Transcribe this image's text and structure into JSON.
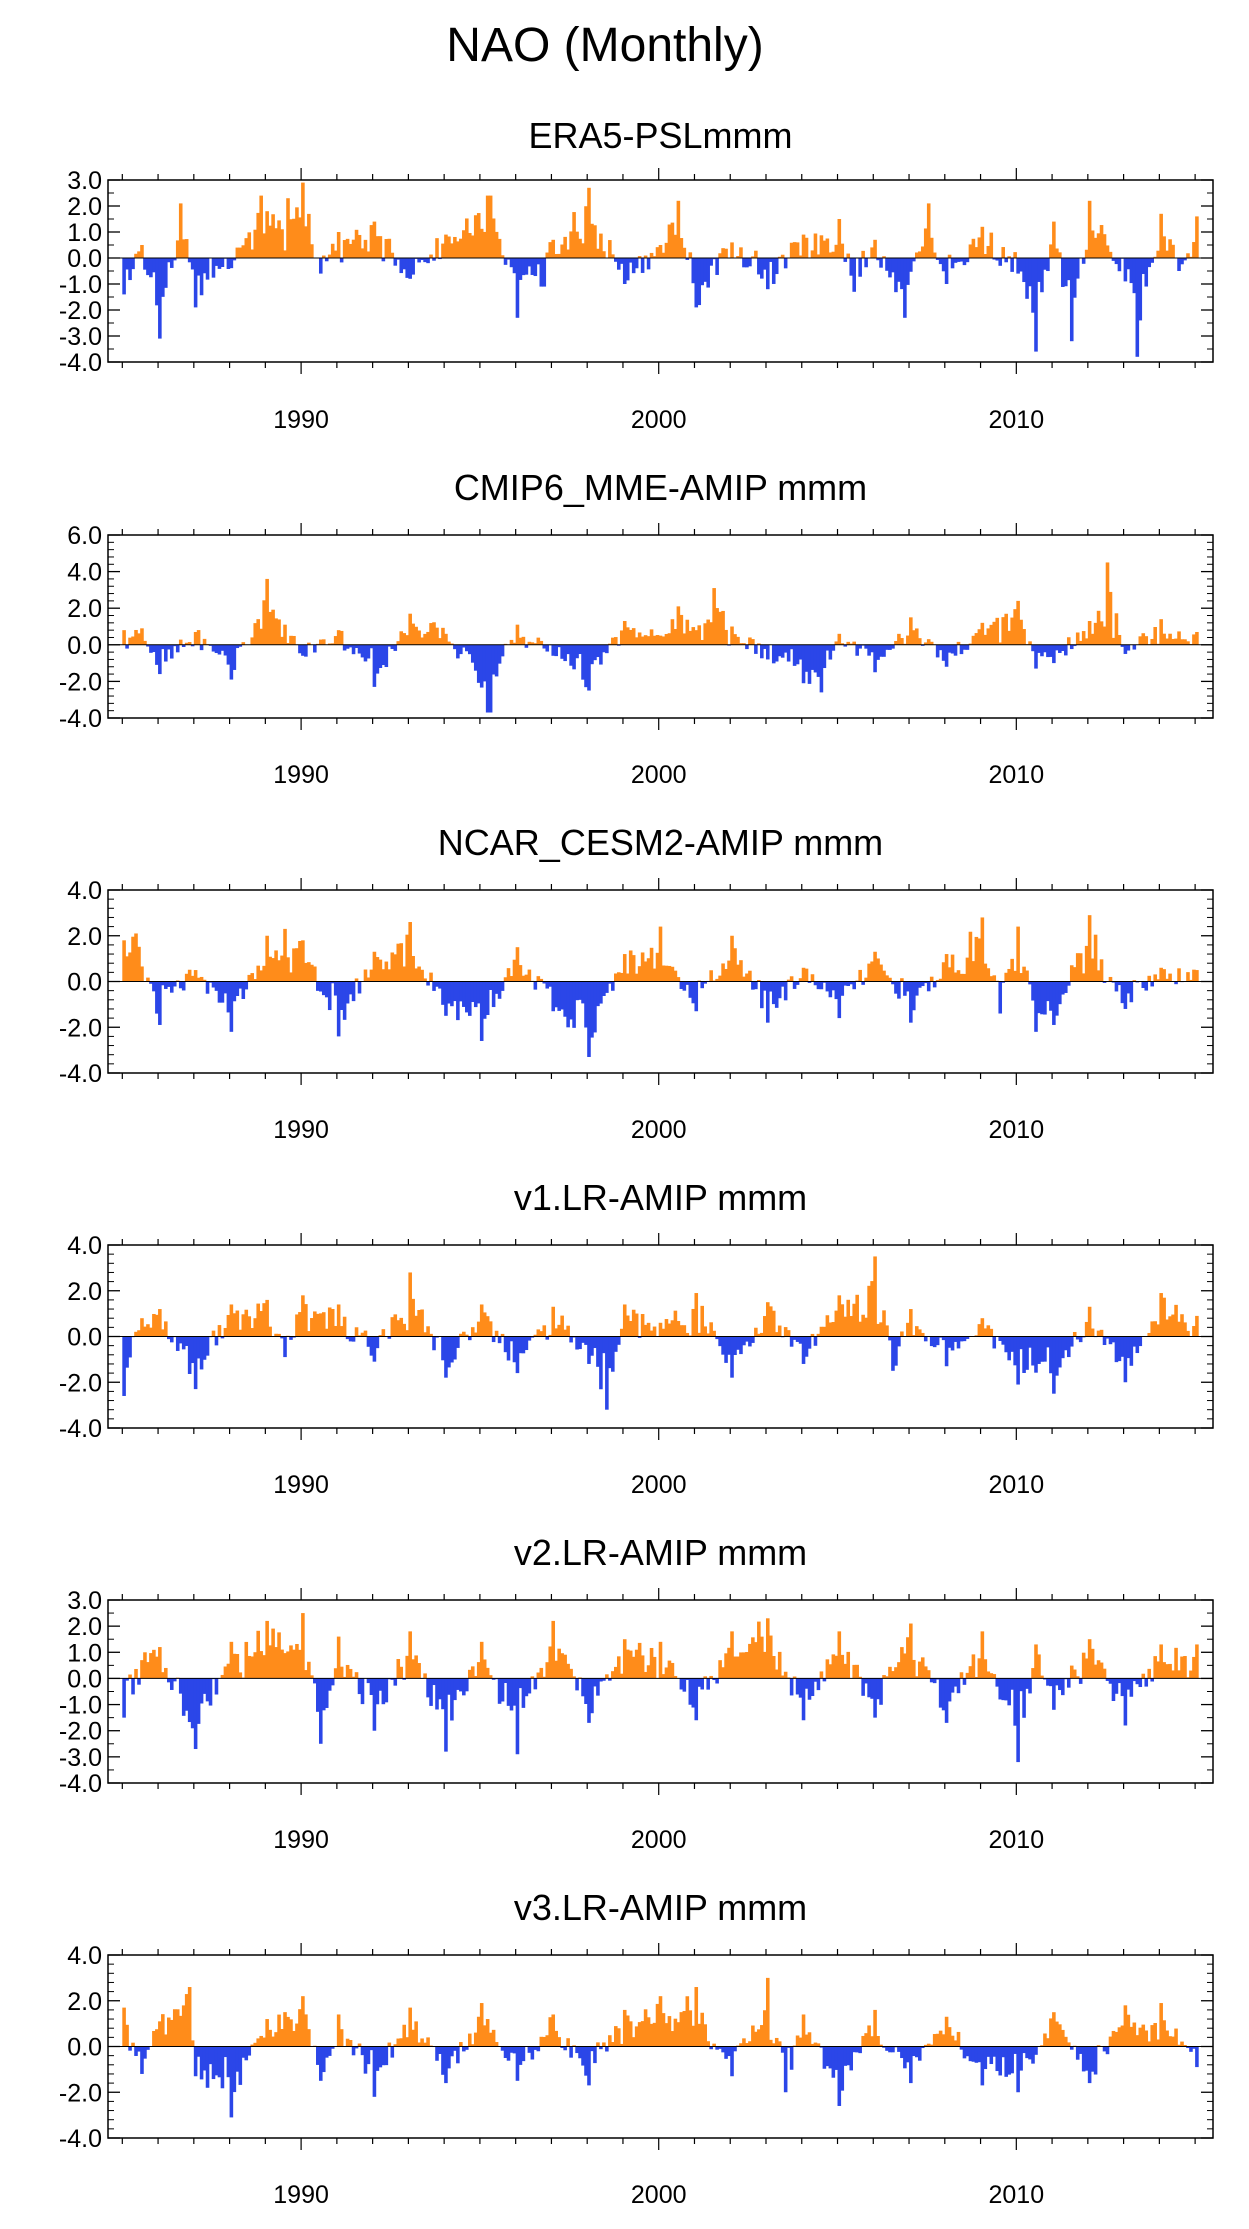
{
  "figure": {
    "title": "NAO (Monthly)"
  },
  "colors": {
    "positive": "#ff8c1a",
    "negative": "#2b46e8",
    "axis": "#000000"
  },
  "chart_data": [
    {
      "type": "area",
      "title": "ERA5-PSLmmm",
      "xlim": [
        1984.6,
        2015.5
      ],
      "ylim": [
        -4.0,
        3.0
      ],
      "xticks": [
        1990,
        2000,
        2010
      ],
      "yticks": [
        "-4.0",
        "-3.0",
        "-2.0",
        "-1.0",
        "0.0",
        "1.0",
        "2.0",
        "3.0"
      ],
      "grid": false,
      "series": [
        {
          "x": [
            1985,
            1985.5,
            1986,
            1986.6,
            1987,
            1988.2,
            1988.8,
            1989,
            1990,
            1990.5,
            1991,
            1992,
            1993,
            1994,
            1995.2,
            1996,
            1996.7,
            1997,
            1998,
            1999,
            2000,
            2000.5,
            2001,
            2002,
            2003,
            2004,
            2005,
            2005.4,
            2006,
            2006.8,
            2007.5,
            2008,
            2009,
            2010,
            2010.5,
            2011,
            2011.5,
            2012,
            2013,
            2013.3,
            2014,
            2014.5,
            2015
          ],
          "y": [
            -1.4,
            0.5,
            -3.1,
            2.1,
            -1.9,
            0.4,
            2.4,
            1.8,
            2.9,
            -0.6,
            1.0,
            1.4,
            -0.8,
            0.9,
            2.4,
            -2.3,
            -1.1,
            0.7,
            2.7,
            -1.0,
            0.5,
            2.2,
            -1.9,
            0.6,
            -1.2,
            0.9,
            1.5,
            -1.3,
            0.7,
            -2.3,
            2.1,
            -1.0,
            1.2,
            -0.6,
            -3.6,
            1.4,
            -3.2,
            2.2,
            -0.9,
            -3.8,
            1.7,
            -0.5,
            1.6
          ]
        }
      ]
    },
    {
      "type": "area",
      "title": "CMIP6_MME-AMIP  mmm",
      "xlim": [
        1984.6,
        2015.5
      ],
      "ylim": [
        -4.0,
        6.0
      ],
      "xticks": [
        1990,
        2000,
        2010
      ],
      "yticks": [
        "-4.0",
        "-2.0",
        "0.0",
        "2.0",
        "4.0",
        "6.0"
      ],
      "grid": false,
      "series": [
        {
          "x": [
            1985,
            1985.5,
            1986,
            1987,
            1988,
            1989,
            1989.5,
            1990,
            1991,
            1992,
            1993,
            1994,
            1995.2,
            1996,
            1997,
            1998,
            1999,
            2000,
            2000.5,
            2001,
            2001.5,
            2002,
            2003,
            2004,
            2004.5,
            2005,
            2006,
            2007,
            2008,
            2009,
            2010,
            2010.5,
            2011,
            2012,
            2012.5,
            2013,
            2014,
            2015
          ],
          "y": [
            0.8,
            0.9,
            -1.6,
            0.7,
            -1.9,
            3.6,
            1.1,
            -0.6,
            0.8,
            -2.3,
            1.7,
            0.6,
            -3.7,
            1.1,
            -0.6,
            -2.5,
            1.3,
            0.5,
            2.1,
            0.8,
            3.1,
            1.0,
            -0.8,
            -2.1,
            -2.6,
            0.6,
            -1.5,
            1.5,
            -1.2,
            1.2,
            2.4,
            -1.3,
            -1.0,
            1.3,
            4.5,
            -0.5,
            1.4,
            0.7
          ]
        }
      ]
    },
    {
      "type": "area",
      "title": "NCAR_CESM2-AMIP  mmm",
      "xlim": [
        1984.6,
        2015.5
      ],
      "ylim": [
        -4.0,
        4.0
      ],
      "xticks": [
        1990,
        2000,
        2010
      ],
      "yticks": [
        "-4.0",
        "-2.0",
        "0.0",
        "2.0",
        "4.0"
      ],
      "grid": false,
      "series": [
        {
          "x": [
            1985,
            1985.3,
            1986,
            1987,
            1988,
            1989,
            1989.5,
            1990,
            1991,
            1992,
            1993,
            1994,
            1995,
            1996,
            1997,
            1998,
            1999,
            2000,
            2001,
            2002,
            2003,
            2004,
            2005,
            2006,
            2007,
            2008,
            2009,
            2009.5,
            2010,
            2010.5,
            2011,
            2012,
            2013,
            2014,
            2015
          ],
          "y": [
            1.8,
            2.1,
            -1.9,
            0.5,
            -2.2,
            2.0,
            2.3,
            1.8,
            -2.4,
            1.3,
            2.6,
            -1.5,
            -2.6,
            1.5,
            -1.3,
            -3.3,
            1.2,
            2.4,
            -1.3,
            2.0,
            -1.8,
            0.6,
            -1.6,
            1.3,
            -1.8,
            1.2,
            2.8,
            -1.4,
            2.4,
            -2.2,
            -1.9,
            2.9,
            -1.2,
            0.6,
            0.5
          ]
        }
      ]
    },
    {
      "type": "area",
      "title": "v1.LR-AMIP  mmm",
      "xlim": [
        1984.6,
        2015.5
      ],
      "ylim": [
        -4.0,
        4.0
      ],
      "xticks": [
        1990,
        2000,
        2010
      ],
      "yticks": [
        "-4.0",
        "-2.0",
        "0.0",
        "2.0",
        "4.0"
      ],
      "grid": false,
      "series": [
        {
          "x": [
            1985,
            1985.5,
            1986,
            1987,
            1988,
            1989,
            1989.5,
            1990,
            1991,
            1992,
            1993,
            1994,
            1995,
            1996,
            1997,
            1998,
            1998.5,
            1999,
            2000,
            2001,
            2002,
            2003,
            2004,
            2005,
            2006,
            2006.5,
            2007,
            2008,
            2009,
            2010,
            2011,
            2012,
            2013,
            2014,
            2015
          ],
          "y": [
            -2.6,
            0.8,
            1.2,
            -2.3,
            1.4,
            1.6,
            -0.9,
            1.8,
            1.4,
            -1.1,
            2.8,
            -1.8,
            1.4,
            -1.6,
            1.3,
            -1.2,
            -3.2,
            1.4,
            0.6,
            1.9,
            -1.8,
            1.5,
            -1.2,
            1.8,
            3.5,
            -1.5,
            1.2,
            -1.3,
            0.8,
            -2.1,
            -2.5,
            1.3,
            -2.0,
            1.9,
            0.9
          ]
        }
      ]
    },
    {
      "type": "area",
      "title": "v2.LR-AMIP  mmm",
      "xlim": [
        1984.6,
        2015.5
      ],
      "ylim": [
        -4.0,
        3.0
      ],
      "xticks": [
        1990,
        2000,
        2010
      ],
      "yticks": [
        "-4.0",
        "-3.0",
        "-2.0",
        "-1.0",
        "0.0",
        "1.0",
        "2.0",
        "3.0"
      ],
      "grid": false,
      "series": [
        {
          "x": [
            1985,
            1985.5,
            1986,
            1987,
            1988,
            1989,
            1990,
            1990.5,
            1991,
            1992,
            1993,
            1994,
            1995,
            1996,
            1997,
            1998,
            1999,
            2000,
            2001,
            2002,
            2003,
            2004,
            2005,
            2006,
            2007,
            2008,
            2009,
            2010,
            2010.5,
            2011,
            2012,
            2013,
            2014,
            2015
          ],
          "y": [
            -1.5,
            0.7,
            1.2,
            -2.7,
            1.4,
            2.2,
            2.5,
            -2.5,
            1.6,
            -2.0,
            1.8,
            -2.8,
            1.4,
            -2.9,
            2.2,
            -1.7,
            1.5,
            1.4,
            -1.6,
            1.8,
            2.3,
            -1.6,
            1.8,
            -1.5,
            2.1,
            -1.7,
            1.8,
            -3.2,
            1.3,
            -1.2,
            1.5,
            -1.8,
            1.3,
            1.3
          ]
        }
      ]
    },
    {
      "type": "area",
      "title": "v3.LR-AMIP  mmm",
      "xlim": [
        1984.6,
        2015.5
      ],
      "ylim": [
        -4.0,
        4.0
      ],
      "xticks": [
        1990,
        2000,
        2010
      ],
      "yticks": [
        "-4.0",
        "-2.0",
        "0.0",
        "2.0",
        "4.0"
      ],
      "grid": false,
      "series": [
        {
          "x": [
            1985,
            1985.5,
            1986,
            1986.8,
            1987,
            1988,
            1989,
            1990,
            1990.5,
            1991,
            1992,
            1993,
            1994,
            1995,
            1996,
            1997,
            1998,
            1999,
            2000,
            2001,
            2002,
            2003,
            2003.5,
            2004,
            2005,
            2006,
            2007,
            2008,
            2009,
            2010,
            2011,
            2012,
            2013,
            2014,
            2015
          ],
          "y": [
            1.7,
            -1.2,
            1.1,
            2.6,
            -1.3,
            -3.1,
            1.2,
            2.2,
            -1.5,
            1.4,
            -2.2,
            1.7,
            -1.6,
            1.9,
            -1.5,
            1.4,
            -1.7,
            1.6,
            2.2,
            2.6,
            -1.3,
            3.0,
            -2.0,
            1.4,
            -2.6,
            1.6,
            -1.6,
            1.3,
            -1.7,
            -2.0,
            1.5,
            -1.6,
            1.8,
            1.9,
            -0.9
          ]
        }
      ]
    }
  ]
}
